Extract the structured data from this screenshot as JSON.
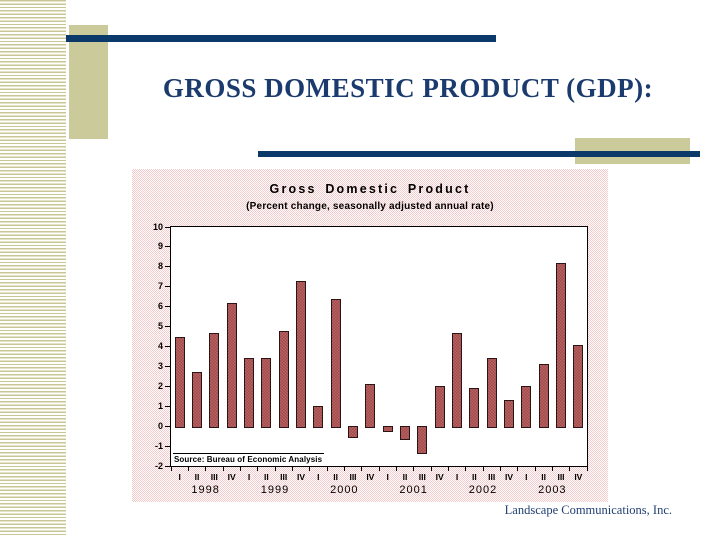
{
  "slide": {
    "title": "GROSS DOMESTIC PRODUCT (GDP):",
    "footer": "Landscape Communications, Inc."
  },
  "colors": {
    "navy_rule": "#0b3a6a",
    "title_navy": "#1b3a6e",
    "stripe_olive": "#c8c795",
    "accent_beige": "#cbca9b",
    "bar_fill": "#b25d5d",
    "bar_fill_dark": "#9d4b4b",
    "bar_border": "#2a1414",
    "chart_bg_pink": "#f6caca"
  },
  "chart_data": {
    "type": "bar",
    "title": "Gross Domestic Product",
    "subtitle": "(Percent change, seasonally adjusted annual rate)",
    "source": "Source: Bureau of Economic Analysis",
    "ylim": [
      -2,
      10
    ],
    "yticks": [
      10,
      9,
      8,
      7,
      6,
      5,
      4,
      3,
      2,
      1,
      0,
      -1,
      -2
    ],
    "grid": false,
    "legend": false,
    "years": [
      "1998",
      "1999",
      "2000",
      "2001",
      "2002",
      "2003"
    ],
    "quarter_labels": [
      "I",
      "II",
      "III",
      "IV"
    ],
    "categories": [
      "1998 I",
      "1998 II",
      "1998 III",
      "1998 IV",
      "1999 I",
      "1999 II",
      "1999 III",
      "1999 IV",
      "2000 I",
      "2000 II",
      "2000 III",
      "2000 IV",
      "2001 I",
      "2001 II",
      "2001 III",
      "2001 IV",
      "2002 I",
      "2002 II",
      "2002 III",
      "2002 IV",
      "2003 I",
      "2003 II",
      "2003 III",
      "2003 IV"
    ],
    "series": [
      {
        "name": "GDP percent change",
        "values": [
          4.5,
          2.7,
          4.7,
          6.2,
          3.4,
          3.4,
          4.8,
          7.3,
          1.0,
          6.4,
          -0.5,
          2.1,
          -0.2,
          -0.6,
          -1.3,
          2.0,
          4.7,
          1.9,
          3.4,
          1.3,
          2.0,
          3.1,
          8.2,
          4.1
        ]
      }
    ]
  }
}
